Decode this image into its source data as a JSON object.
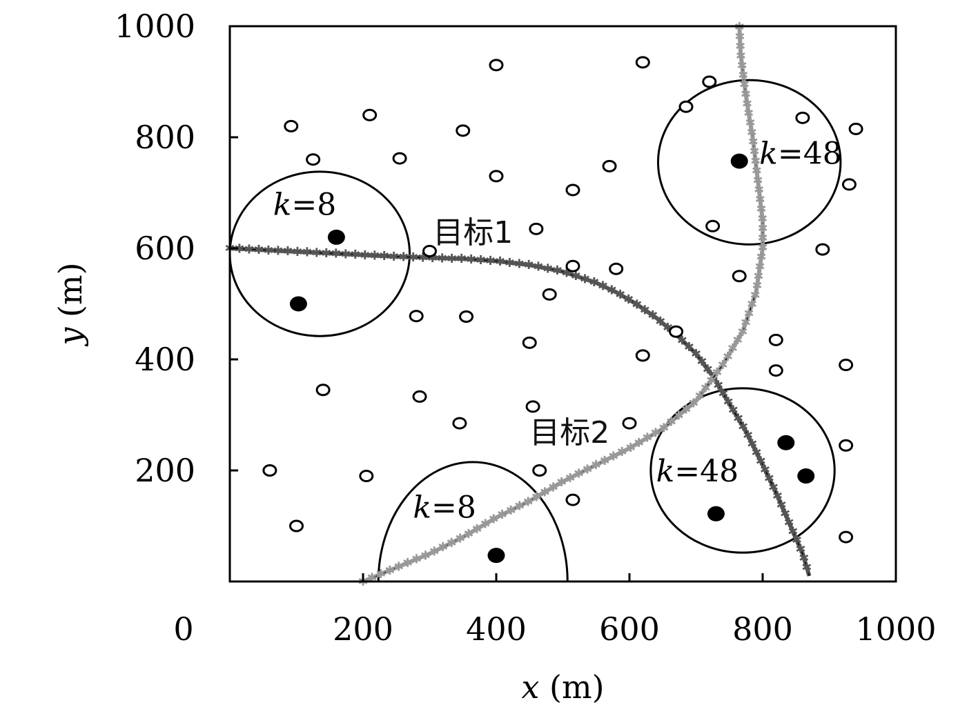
{
  "chart_data": {
    "type": "scatter",
    "title": "",
    "xlabel": {
      "var": "x",
      "unit": " (m)"
    },
    "ylabel": {
      "var": "y",
      "unit": " (m)"
    },
    "xlim": [
      0,
      1000
    ],
    "ylim": [
      0,
      1000
    ],
    "x_ticks": [
      {
        "value": 0,
        "label": "0"
      },
      {
        "value": 200,
        "label": "200"
      },
      {
        "value": 400,
        "label": "400"
      },
      {
        "value": 600,
        "label": "600"
      },
      {
        "value": 800,
        "label": "800"
      },
      {
        "value": 1000,
        "label": "1000"
      }
    ],
    "y_ticks": [
      {
        "value": 200,
        "label": "200"
      },
      {
        "value": 400,
        "label": "400"
      },
      {
        "value": 600,
        "label": "600"
      },
      {
        "value": 800,
        "label": "800"
      },
      {
        "value": 1000,
        "label": "1000"
      }
    ],
    "grid": false,
    "colors": {
      "target1": "#555555",
      "target2": "#999999",
      "node": "#000000"
    },
    "idle_nodes": [
      [
        92,
        820
      ],
      [
        125,
        760
      ],
      [
        210,
        840
      ],
      [
        255,
        762
      ],
      [
        350,
        812
      ],
      [
        400,
        930
      ],
      [
        400,
        730
      ],
      [
        620,
        935
      ],
      [
        720,
        900
      ],
      [
        685,
        855
      ],
      [
        860,
        835
      ],
      [
        940,
        815
      ],
      [
        570,
        748
      ],
      [
        515,
        705
      ],
      [
        930,
        715
      ],
      [
        725,
        640
      ],
      [
        460,
        635
      ],
      [
        300,
        595
      ],
      [
        890,
        598
      ],
      [
        515,
        568
      ],
      [
        580,
        563
      ],
      [
        765,
        550
      ],
      [
        480,
        517
      ],
      [
        280,
        478
      ],
      [
        355,
        477
      ],
      [
        450,
        430
      ],
      [
        670,
        450
      ],
      [
        620,
        407
      ],
      [
        820,
        435
      ],
      [
        820,
        380
      ],
      [
        925,
        390
      ],
      [
        140,
        345
      ],
      [
        285,
        333
      ],
      [
        455,
        315
      ],
      [
        345,
        285
      ],
      [
        600,
        285
      ],
      [
        925,
        245
      ],
      [
        60,
        200
      ],
      [
        205,
        190
      ],
      [
        465,
        200
      ],
      [
        515,
        147
      ],
      [
        100,
        100
      ],
      [
        925,
        80
      ]
    ],
    "active_nodes": [
      [
        160,
        620
      ],
      [
        103,
        500
      ],
      [
        765,
        757
      ],
      [
        835,
        250
      ],
      [
        865,
        190
      ],
      [
        730,
        122
      ],
      [
        400,
        47
      ]
    ],
    "clusters": [
      {
        "cx": 135,
        "cy": 590,
        "rx": 135,
        "ry": 148,
        "label": {
          "x": 65,
          "y": 660,
          "k": "k",
          "eq": "=8"
        }
      },
      {
        "cx": 780,
        "cy": 755,
        "rx": 137,
        "ry": 148,
        "label": {
          "x": 795,
          "y": 752,
          "k": "k",
          "eq": "=48"
        }
      },
      {
        "cx": 770,
        "cy": 200,
        "rx": 138,
        "ry": 148,
        "label": {
          "x": 640,
          "y": 180,
          "k": "k",
          "eq": "=48"
        }
      },
      {
        "cx": 365,
        "cy": 0,
        "rx": 142,
        "ry": 215,
        "half": true,
        "label": {
          "x": 275,
          "y": 115,
          "k": "k",
          "eq": "=8"
        }
      }
    ],
    "series": [
      {
        "name": "目标1",
        "label_pos": {
          "x": 305,
          "y": 610
        },
        "x": [
          0,
          50,
          100,
          150,
          200,
          250,
          300,
          350,
          400,
          450,
          500,
          550,
          580,
          610,
          640,
          670,
          700,
          725,
          750,
          775,
          800,
          820,
          840,
          860,
          870
        ],
        "y": [
          600,
          597,
          594,
          591,
          588,
          585,
          583,
          581,
          577,
          570,
          558,
          538,
          521,
          500,
          475,
          445,
          410,
          370,
          320,
          270,
          210,
          160,
          105,
          50,
          10
        ]
      },
      {
        "name": "目标2",
        "label_pos": {
          "x": 450,
          "y": 250
        },
        "x": [
          200,
          250,
          300,
          350,
          400,
          450,
          500,
          550,
          600,
          650,
          700,
          740,
          770,
          790,
          800,
          800,
          795,
          790,
          785,
          778,
          772,
          767,
          765
        ],
        "y": [
          0,
          25,
          50,
          80,
          115,
          145,
          180,
          210,
          240,
          275,
          325,
          390,
          450,
          520,
          600,
          650,
          700,
          750,
          800,
          850,
          900,
          950,
          1000
        ]
      }
    ]
  }
}
